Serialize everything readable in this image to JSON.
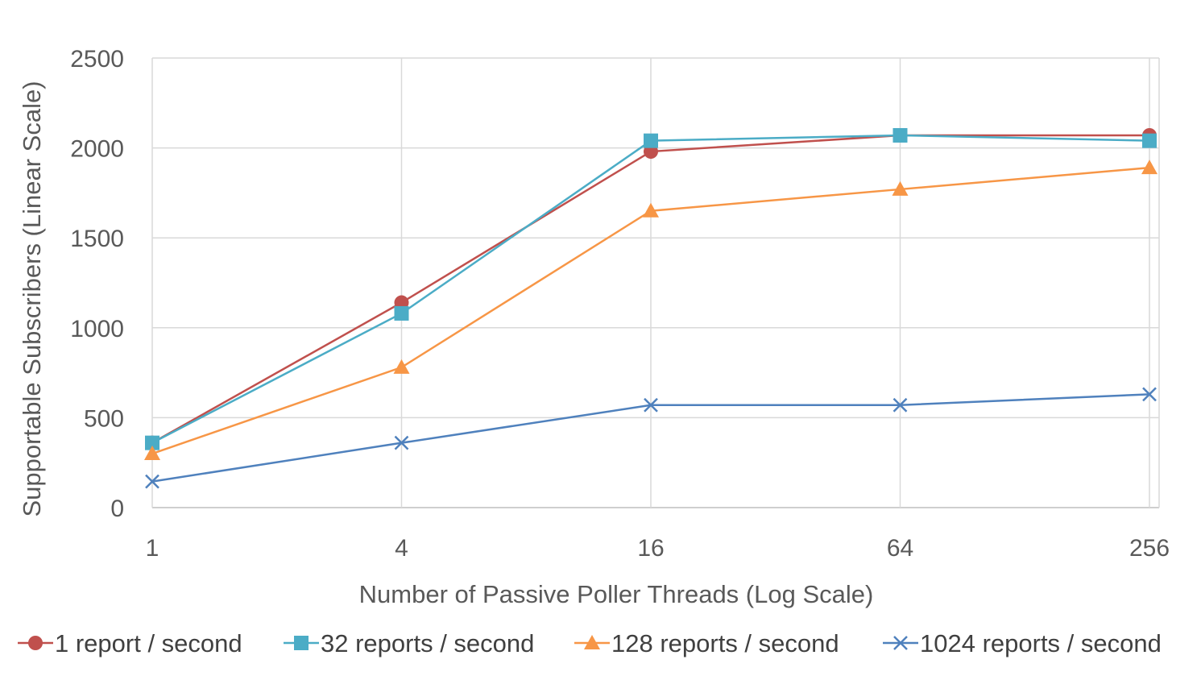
{
  "chart_data": {
    "type": "line",
    "title": "",
    "xlabel": "Number of Passive Poller Threads (Log Scale)",
    "ylabel": "Supportable Subscribers (Linear Scale)",
    "x_scale": "log",
    "x": [
      1,
      4,
      16,
      64,
      256
    ],
    "x_tick_labels": [
      "1",
      "4",
      "16",
      "64",
      "256"
    ],
    "ylim": [
      0,
      2500
    ],
    "y_ticks": [
      0,
      500,
      1000,
      1500,
      2000,
      2500
    ],
    "y_tick_labels": [
      "0",
      "500",
      "1000",
      "1500",
      "2000",
      "2500"
    ],
    "grid": true,
    "legend_position": "bottom",
    "series": [
      {
        "name": "1 report / second",
        "values": [
          360,
          1140,
          1980,
          2070,
          2070
        ],
        "color": "#C0504D",
        "marker": "circle"
      },
      {
        "name": "32 reports / second",
        "values": [
          360,
          1080,
          2040,
          2070,
          2040
        ],
        "color": "#4BACC6",
        "marker": "square"
      },
      {
        "name": "128 reports / second",
        "values": [
          300,
          780,
          1650,
          1770,
          1890
        ],
        "color": "#F79646",
        "marker": "triangle"
      },
      {
        "name": "1024 reports / second",
        "values": [
          145,
          360,
          570,
          570,
          630
        ],
        "color": "#4F81BD",
        "marker": "x"
      }
    ]
  }
}
